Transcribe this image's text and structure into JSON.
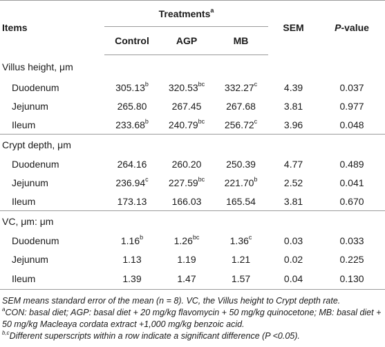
{
  "header": {
    "items": "Items",
    "treatments": "Treatments",
    "treatments_sup": "a",
    "sem": "SEM",
    "pvalue_italic": "P",
    "pvalue_rest": "-value",
    "groups": [
      "Control",
      "AGP",
      "MB"
    ]
  },
  "sections": [
    {
      "label": "Villus height, μm",
      "rows": [
        {
          "label": "Duodenum",
          "control": "305.13",
          "control_sup": "b",
          "agp": "320.53",
          "agp_sup": "bc",
          "mb": "332.27",
          "mb_sup": "c",
          "sem": "4.39",
          "p": "0.037"
        },
        {
          "label": "Jejunum",
          "control": "265.80",
          "control_sup": "",
          "agp": "267.45",
          "agp_sup": "",
          "mb": "267.68",
          "mb_sup": "",
          "sem": "3.81",
          "p": "0.977"
        },
        {
          "label": "Ileum",
          "control": "233.68",
          "control_sup": "b",
          "agp": "240.79",
          "agp_sup": "bc",
          "mb": "256.72",
          "mb_sup": "c",
          "sem": "3.96",
          "p": "0.048"
        }
      ]
    },
    {
      "label": "Crypt depth, μm",
      "rows": [
        {
          "label": "Duodenum",
          "control": "264.16",
          "control_sup": "",
          "agp": "260.20",
          "agp_sup": "",
          "mb": "250.39",
          "mb_sup": "",
          "sem": "4.77",
          "p": "0.489"
        },
        {
          "label": "Jejunum",
          "control": "236.94",
          "control_sup": "c",
          "agp": "227.59",
          "agp_sup": "bc",
          "mb": "221.70",
          "mb_sup": "b",
          "sem": "2.52",
          "p": "0.041"
        },
        {
          "label": "Ileum",
          "control": "173.13",
          "control_sup": "",
          "agp": "166.03",
          "agp_sup": "",
          "mb": "165.54",
          "mb_sup": "",
          "sem": "3.81",
          "p": "0.670"
        }
      ]
    },
    {
      "label": "VC, μm: μm",
      "rows": [
        {
          "label": "Duodenum",
          "control": "1.16",
          "control_sup": "b",
          "agp": "1.26",
          "agp_sup": "bc",
          "mb": "1.36",
          "mb_sup": "c",
          "sem": "0.03",
          "p": "0.033"
        },
        {
          "label": "Jejunum",
          "control": "1.13",
          "control_sup": "",
          "agp": "1.19",
          "agp_sup": "",
          "mb": "1.21",
          "mb_sup": "",
          "sem": "0.02",
          "p": "0.225"
        },
        {
          "label": "Ileum",
          "control": "1.39",
          "control_sup": "",
          "agp": "1.47",
          "agp_sup": "",
          "mb": "1.57",
          "mb_sup": "",
          "sem": "0.04",
          "p": "0.130"
        }
      ]
    }
  ],
  "footnotes": {
    "line1": "SEM means standard error of the mean (n = 8). VC, the Villus height to Crypt depth rate.",
    "note_a_sup": "a",
    "note_a": "CON: basal diet; AGP: basal diet + 20 mg/kg flavomycin + 50 mg/kg quinocetone; MB: basal diet + 50 mg/kg Macleaya cordata extract +1,000 mg/kg benzoic acid.",
    "note_bc_sup": "b,c",
    "note_bc": "Different superscripts within a row indicate a significant difference (P <0.05)."
  }
}
